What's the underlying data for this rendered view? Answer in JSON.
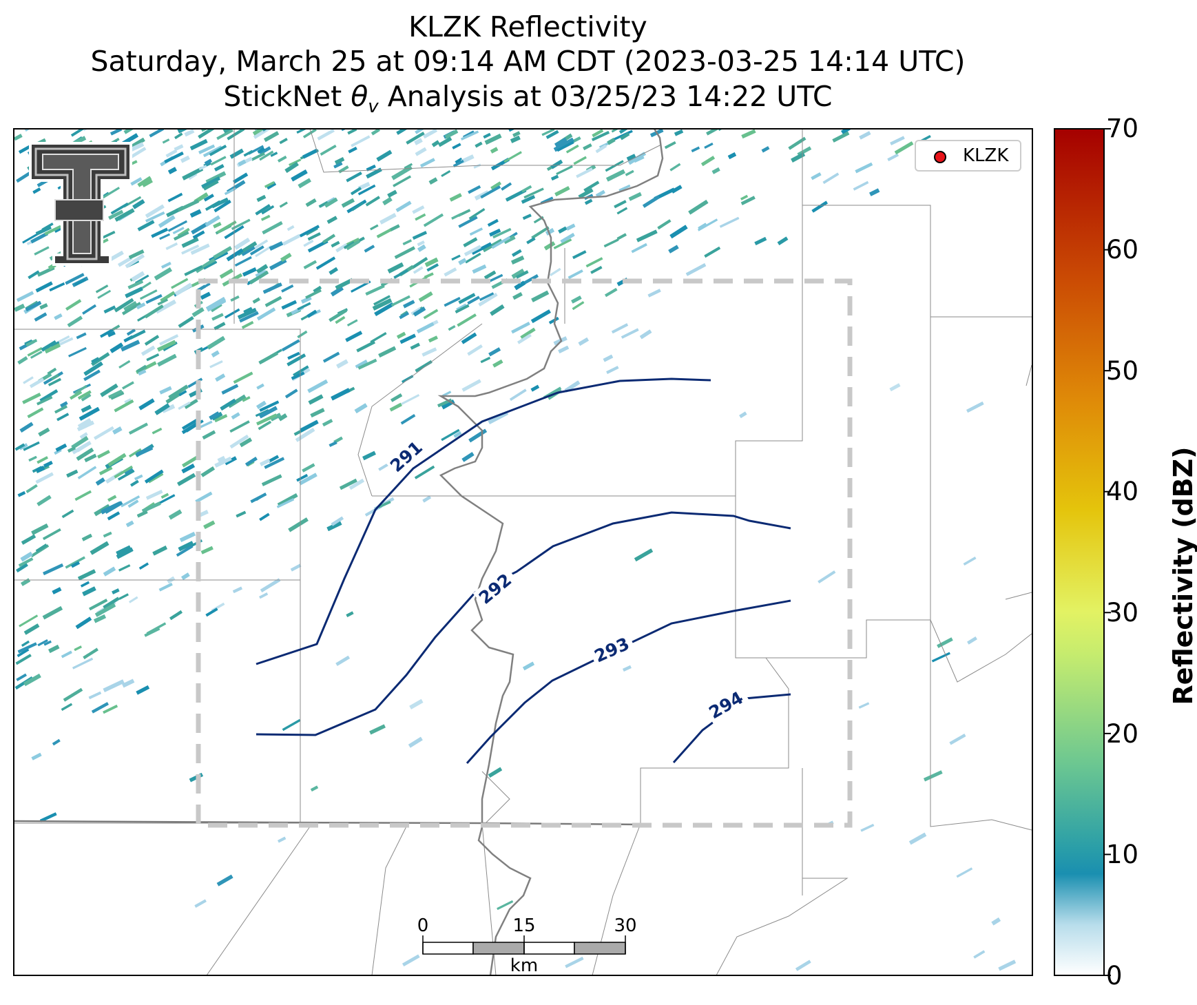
{
  "title": {
    "line1": "KLZK Reflectivity",
    "line2": "Saturday, March 25 at 09:14 AM CDT (2023-03-25 14:14 UTC)",
    "line3_prefix": "StickNet ",
    "line3_symbol": "θ",
    "line3_subscript": "v",
    "line3_suffix": " Analysis at 03/25/23 14:22 UTC"
  },
  "legend": {
    "label": "KLZK",
    "marker_color": "#e8141a"
  },
  "contours": [
    {
      "label": "291"
    },
    {
      "label": "292"
    },
    {
      "label": "293"
    },
    {
      "label": "294"
    }
  ],
  "contour_color": "#0b2a73",
  "colorbar": {
    "label": "Reflectivity (dBZ)",
    "ticks": [
      "0",
      "10",
      "20",
      "30",
      "40",
      "50",
      "60",
      "70"
    ],
    "range": [
      0,
      70
    ],
    "colors": [
      "#ffffff",
      "#1a8fb0",
      "#7bcf8a",
      "#e8f56a",
      "#e8c012",
      "#d97a0a",
      "#c23a06",
      "#a60000"
    ]
  },
  "scale_bar": {
    "ticks": [
      "0",
      "15",
      "30"
    ],
    "unit": "km"
  },
  "logo": {
    "name": "Texas Tech double-T logo"
  }
}
